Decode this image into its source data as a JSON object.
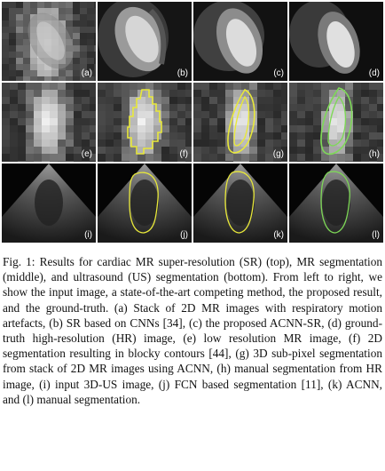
{
  "panels": [
    {
      "label": "(a)",
      "row": "top",
      "kind": "mr-stack"
    },
    {
      "label": "(b)",
      "row": "top",
      "kind": "mr-sr-cnn"
    },
    {
      "label": "(c)",
      "row": "top",
      "kind": "mr-acnn-sr"
    },
    {
      "label": "(d)",
      "row": "top",
      "kind": "mr-ground-truth"
    },
    {
      "label": "(e)",
      "row": "middle",
      "kind": "mr-lowres"
    },
    {
      "label": "(f)",
      "row": "middle",
      "kind": "seg-2d-blocky"
    },
    {
      "label": "(g)",
      "row": "middle",
      "kind": "seg-3d-acnn"
    },
    {
      "label": "(h)",
      "row": "middle",
      "kind": "seg-manual-hr"
    },
    {
      "label": "(i)",
      "row": "bottom",
      "kind": "us-input"
    },
    {
      "label": "(j)",
      "row": "bottom",
      "kind": "us-fcn"
    },
    {
      "label": "(k)",
      "row": "bottom",
      "kind": "us-acnn"
    },
    {
      "label": "(l)",
      "row": "bottom",
      "kind": "us-manual"
    }
  ],
  "colors": {
    "contour_yellow": "#e8e83a",
    "contour_green": "#7ed957",
    "label_text": "#ffffff"
  },
  "caption": {
    "lead": "Fig. 1:",
    "text": "Results for cardiac MR super-resolution (SR) (top), MR segmentation (middle), and ultrasound (US) segmentation (bottom). From left to right, we show the input image, a state-of-the-art competing method, the proposed result, and the ground-truth. (a) Stack of 2D MR images with respiratory motion artefacts, (b) SR based on CNNs [34], (c) the proposed ACNN-SR, (d) ground-truth high-resolution (HR) image, (e) low resolution MR image, (f) 2D segmentation resulting in blocky contours [44], (g) 3D sub-pixel segmentation from stack of 2D MR images using ACNN, (h) manual segmentation from HR image, (i) input 3D-US image, (j) FCN based segmentation [11], (k) ACNN, and (l) manual segmentation."
  }
}
